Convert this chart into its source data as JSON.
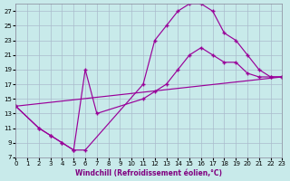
{
  "xlabel": "Windchill (Refroidissement éolien,°C)",
  "bg_color": "#c8eaea",
  "line_color": "#990099",
  "grid_color": "#aabbcc",
  "xlim": [
    0,
    23
  ],
  "ylim": [
    7,
    28
  ],
  "xticks": [
    0,
    1,
    2,
    3,
    4,
    5,
    6,
    7,
    8,
    9,
    10,
    11,
    12,
    13,
    14,
    15,
    16,
    17,
    18,
    19,
    20,
    21,
    22,
    23
  ],
  "yticks": [
    7,
    9,
    11,
    13,
    15,
    17,
    19,
    21,
    23,
    25,
    27
  ],
  "line1_x": [
    0,
    2,
    3,
    4,
    5,
    6,
    11,
    12,
    13,
    14,
    15,
    16,
    17,
    18,
    19,
    20,
    21,
    22,
    23
  ],
  "line1_y": [
    14,
    11,
    10,
    9,
    8,
    8,
    17,
    23,
    25,
    27,
    28,
    28,
    27,
    24,
    23,
    21,
    19,
    18,
    18
  ],
  "line2_x": [
    0,
    2,
    3,
    4,
    5,
    6,
    7,
    11,
    12,
    13,
    14,
    15,
    16,
    17,
    18,
    19,
    20,
    21,
    22,
    23
  ],
  "line2_y": [
    14,
    11,
    10,
    9,
    8,
    19,
    13,
    15,
    16,
    17,
    19,
    21,
    22,
    21,
    20,
    20,
    18.5,
    18,
    18,
    18
  ],
  "line3_x": [
    0,
    23
  ],
  "line3_y": [
    14,
    18
  ]
}
